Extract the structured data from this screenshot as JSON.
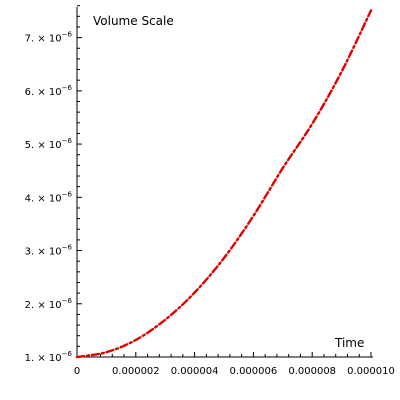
{
  "chart_data": {
    "type": "line",
    "title": "",
    "xlabel": "Time",
    "ylabel": "Volume Scale",
    "xlim": [
      0,
      1e-05
    ],
    "ylim": [
      1e-06,
      7.5e-06
    ],
    "x_ticks": [
      {
        "value": 0,
        "label": "0"
      },
      {
        "value": 2e-06,
        "label": "0.000002"
      },
      {
        "value": 4e-06,
        "label": "0.000004"
      },
      {
        "value": 6e-06,
        "label": "0.000006"
      },
      {
        "value": 8e-06,
        "label": "0.000008"
      },
      {
        "value": 1e-05,
        "label": "0.000010"
      }
    ],
    "y_ticks": [
      {
        "value": 1e-06,
        "mantissa": "1.",
        "base": "× 10",
        "exponent": "−6"
      },
      {
        "value": 2e-06,
        "mantissa": "2.",
        "base": "× 10",
        "exponent": "−6"
      },
      {
        "value": 3e-06,
        "mantissa": "3.",
        "base": "× 10",
        "exponent": "−6"
      },
      {
        "value": 4e-06,
        "mantissa": "4.",
        "base": "× 10",
        "exponent": "−6"
      },
      {
        "value": 5e-06,
        "mantissa": "5.",
        "base": "× 10",
        "exponent": "−6"
      },
      {
        "value": 6e-06,
        "mantissa": "6.",
        "base": "× 10",
        "exponent": "−6"
      },
      {
        "value": 7e-06,
        "mantissa": "7.",
        "base": "× 10",
        "exponent": "−6"
      }
    ],
    "series": [
      {
        "color": "#e00000",
        "style": "dash-dot",
        "points": [
          [
            0,
            1e-06
          ],
          [
            1e-06,
            1.09e-06
          ],
          [
            2e-06,
            1.32e-06
          ],
          [
            3e-06,
            1.7e-06
          ],
          [
            4e-06,
            2.21e-06
          ],
          [
            5e-06,
            2.86e-06
          ],
          [
            6e-06,
            3.65e-06
          ],
          [
            7e-06,
            4.55e-06
          ],
          [
            8e-06,
            5.38e-06
          ],
          [
            9e-06,
            6.36e-06
          ],
          [
            1e-05,
            7.51e-06
          ]
        ]
      }
    ],
    "grid": false,
    "legend": "none"
  }
}
